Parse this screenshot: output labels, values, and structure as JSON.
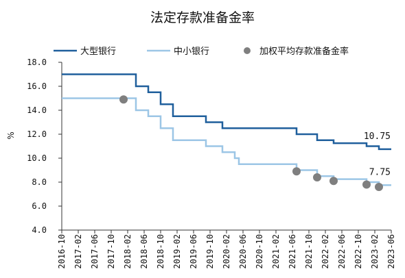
{
  "chart_data": {
    "type": "line",
    "title": "法定存款准备金率",
    "ylabel": "%",
    "ylim": [
      4.0,
      18.0
    ],
    "ytick_labels": [
      "18.0",
      "16.0",
      "14.0",
      "12.0",
      "10.0",
      "8.0",
      "6.0",
      "4.0"
    ],
    "ytick_values": [
      18.0,
      16.0,
      14.0,
      12.0,
      10.0,
      8.0,
      6.0,
      4.0
    ],
    "x_range": [
      "2016-10",
      "2023-06"
    ],
    "xtick_labels": [
      "2016-10",
      "2017-02",
      "2017-06",
      "2017-10",
      "2018-02",
      "2018-06",
      "2018-10",
      "2019-02",
      "2019-06",
      "2019-10",
      "2020-02",
      "2020-06",
      "2020-10",
      "2021-02",
      "2021-06",
      "2021-10",
      "2022-02",
      "2022-06",
      "2022-10",
      "2023-02",
      "2023-06"
    ],
    "legend_position": "top",
    "grid": false,
    "series": [
      {
        "name": "大型银行",
        "style": "step",
        "color": "#1f5f9c",
        "points": [
          [
            "2016-10",
            17.0
          ],
          [
            "2018-04",
            16.0
          ],
          [
            "2018-07",
            15.5
          ],
          [
            "2018-10",
            14.5
          ],
          [
            "2019-01",
            13.5
          ],
          [
            "2019-09",
            13.0
          ],
          [
            "2020-01",
            12.5
          ],
          [
            "2021-07",
            12.0
          ],
          [
            "2021-12",
            11.5
          ],
          [
            "2022-04",
            11.25
          ],
          [
            "2022-12",
            11.0
          ],
          [
            "2023-03",
            10.75
          ],
          [
            "2023-06",
            10.75
          ]
        ],
        "end_label": "10.75"
      },
      {
        "name": "中小银行",
        "style": "step",
        "color": "#9cc6e6",
        "points": [
          [
            "2016-10",
            15.0
          ],
          [
            "2018-04",
            14.0
          ],
          [
            "2018-07",
            13.5
          ],
          [
            "2018-10",
            12.5
          ],
          [
            "2019-01",
            11.5
          ],
          [
            "2019-09",
            11.0
          ],
          [
            "2020-01",
            10.5
          ],
          [
            "2020-04",
            10.0
          ],
          [
            "2020-05",
            9.5
          ],
          [
            "2021-07",
            9.0
          ],
          [
            "2021-12",
            8.5
          ],
          [
            "2022-04",
            8.25
          ],
          [
            "2022-12",
            8.0
          ],
          [
            "2023-03",
            7.75
          ],
          [
            "2023-06",
            7.75
          ]
        ],
        "end_label": "7.75"
      },
      {
        "name": "加权平均存款准备金率",
        "style": "scatter",
        "color": "#7f7f7f",
        "points": [
          [
            "2018-01",
            14.9
          ],
          [
            "2021-07",
            8.9
          ],
          [
            "2021-12",
            8.4
          ],
          [
            "2022-04",
            8.1
          ],
          [
            "2022-12",
            7.8
          ],
          [
            "2023-03",
            7.6
          ]
        ]
      }
    ]
  }
}
